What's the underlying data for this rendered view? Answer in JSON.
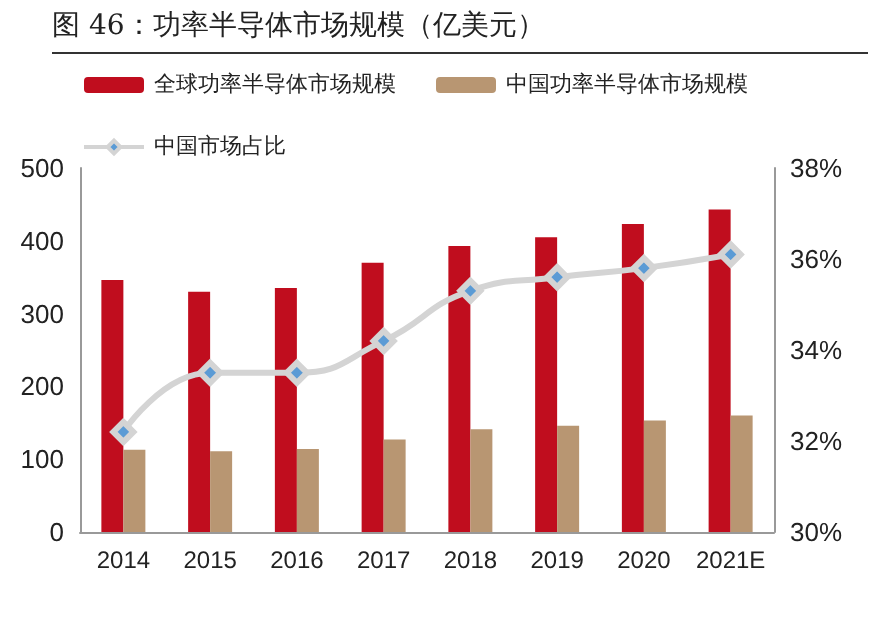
{
  "chart_data": {
    "type": "bar",
    "title": "图 46：功率半导体市场规模（亿美元）",
    "categories": [
      "2014",
      "2015",
      "2016",
      "2017",
      "2018",
      "2019",
      "2020",
      "2021E"
    ],
    "series": [
      {
        "name": "全球功率半导体市场规模",
        "color": "#c00d1e",
        "values": [
          346,
          330,
          335,
          370,
          393,
          405,
          423,
          443
        ]
      },
      {
        "name": "中国功率半导体市场规模",
        "color": "#b89672",
        "values": [
          113,
          111,
          114,
          127,
          141,
          146,
          153,
          160
        ]
      },
      {
        "name": "中国市场占比",
        "type": "line",
        "axis": "y2",
        "color": "#d4d4d4",
        "marker": "diamond",
        "values": [
          32.2,
          33.5,
          33.5,
          34.2,
          35.3,
          35.6,
          35.8,
          36.1
        ]
      }
    ],
    "ylim": [
      0,
      500
    ],
    "yticks": [
      0,
      100,
      200,
      300,
      400,
      500
    ],
    "y2lim": [
      30,
      38
    ],
    "y2ticks": [
      {
        "value": 30,
        "label": "30%"
      },
      {
        "value": 32,
        "label": "32%"
      },
      {
        "value": 34,
        "label": "34%"
      },
      {
        "value": 36,
        "label": "36%"
      },
      {
        "value": 38,
        "label": "38%"
      }
    ],
    "grid": false,
    "legend": "top left"
  }
}
